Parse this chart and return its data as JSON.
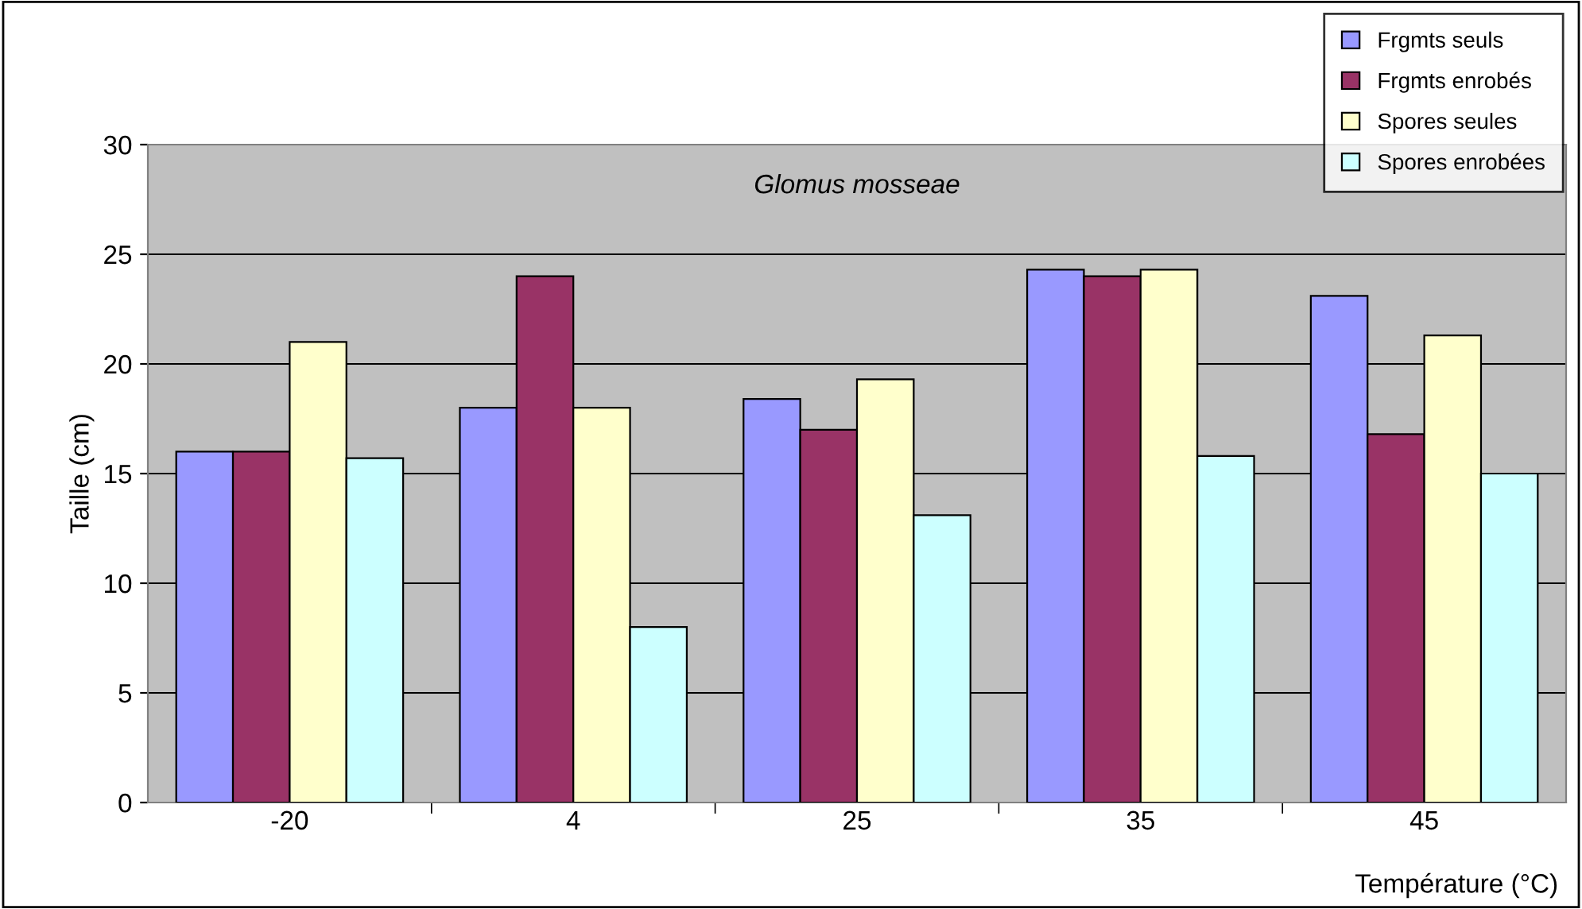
{
  "chart_data": {
    "type": "bar",
    "title": "Glomus mosseae",
    "xlabel": "Température (°C)",
    "ylabel": "Taille (cm)",
    "categories": [
      "-20",
      "4",
      "25",
      "35",
      "45"
    ],
    "series": [
      {
        "name": "Frgmts seuls",
        "color": "#9999ff",
        "values": [
          16,
          18,
          18.4,
          24.3,
          23.1
        ]
      },
      {
        "name": "Frgmts enrobés",
        "color": "#993366",
        "values": [
          16,
          24,
          17,
          24,
          16.8
        ]
      },
      {
        "name": "Spores seules",
        "color": "#ffffcc",
        "values": [
          21,
          18,
          19.3,
          24.3,
          21.3
        ]
      },
      {
        "name": "Spores enrobées",
        "color": "#ccffff",
        "values": [
          15.7,
          8,
          13.1,
          15.8,
          15
        ]
      }
    ],
    "ylim": [
      0,
      30
    ],
    "yticks": [
      0,
      5,
      10,
      15,
      20,
      25,
      30
    ],
    "grid": "y",
    "legend": "top right"
  }
}
